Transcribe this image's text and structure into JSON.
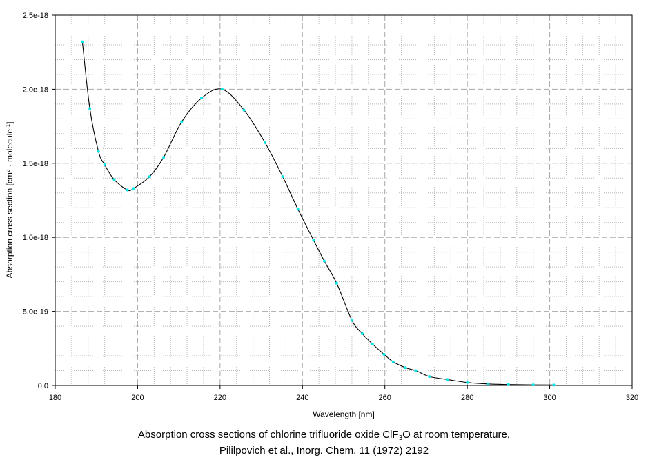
{
  "chart_data": {
    "type": "line",
    "title": "",
    "xlabel": "Wavelength [nm]",
    "ylabel_parts": [
      "Absorption cross section [cm",
      "2",
      " · molecule",
      "-1",
      "]"
    ],
    "xlim": [
      180,
      320
    ],
    "ylim": [
      0,
      2.5e-18
    ],
    "x_ticks": [
      180,
      200,
      220,
      240,
      260,
      280,
      300,
      320
    ],
    "x_tick_labels": [
      "180",
      "200",
      "220",
      "240",
      "260",
      "280",
      "300",
      "320"
    ],
    "y_ticks": [
      0,
      5e-19,
      1e-18,
      1.5e-18,
      2e-18,
      2.5e-18
    ],
    "y_tick_labels": [
      "0.0",
      "5.0e-19",
      "1.0e-18",
      "1.5e-18",
      "2.0e-18",
      "2.5e-18"
    ],
    "grid": true,
    "legend": "none",
    "line_color": "#000000",
    "marker_color": "#00e5e5",
    "series": [
      {
        "x": [
          186.6,
          188.4,
          190.5,
          192.0,
          194.3,
          197.5,
          199.0,
          202.9,
          206.3,
          210.7,
          215.5,
          220.5,
          225.8,
          230.9,
          235.2,
          238.9,
          242.7,
          245.3,
          248.3,
          252.0,
          254.5,
          257.0,
          259.8,
          262.0,
          265.0,
          267.5,
          270.8,
          275.2,
          280.0,
          285.0,
          290.0,
          296.0,
          301.0
        ],
        "y": [
          2.32e-18,
          1.87e-18,
          1.58e-18,
          1.49e-18,
          1.39e-18,
          1.32e-18,
          1.33e-18,
          1.41e-18,
          1.54e-18,
          1.78e-18,
          1.94e-18,
          2e-18,
          1.86e-18,
          1.64e-18,
          1.41e-18,
          1.19e-18,
          9.8e-19,
          8.4e-19,
          6.9e-19,
          4.4e-19,
          3.5e-19,
          2.8e-19,
          2.1e-19,
          1.6e-19,
          1.2e-19,
          1e-19,
          6e-20,
          4e-20,
          2e-20,
          1e-20,
          6e-21,
          4e-21,
          3e-21
        ]
      }
    ]
  },
  "caption": {
    "line1_before": "Absorption cross sections of chlorine trifluoride oxide ClF",
    "line1_sub": "3",
    "line1_after": "O at room temperature,",
    "line2": "Pililpovich et al., Inorg. Chem. 11 (1972) 2192"
  }
}
